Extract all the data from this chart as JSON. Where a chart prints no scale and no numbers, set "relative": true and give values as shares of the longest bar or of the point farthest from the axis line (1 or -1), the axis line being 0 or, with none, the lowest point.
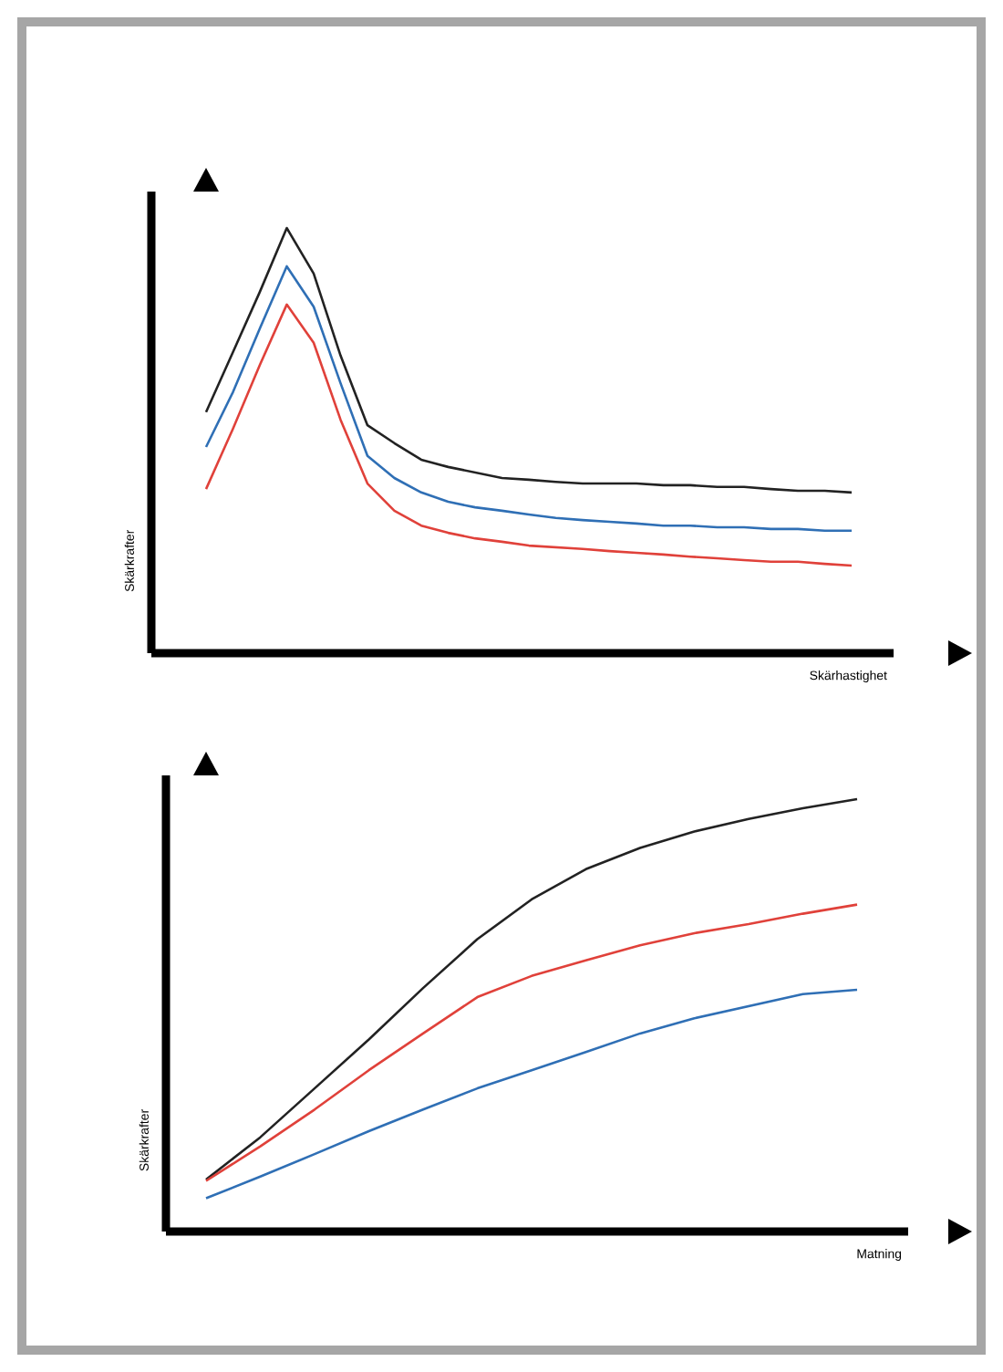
{
  "chart_data": [
    {
      "type": "line",
      "relative": true,
      "xlabel": "Skärhastighet",
      "ylabel": "Skärkrafter",
      "categories": [
        null,
        null,
        null,
        null,
        null,
        null,
        null,
        null,
        null,
        null,
        null,
        null,
        null,
        null,
        null,
        null,
        null,
        null,
        null,
        null,
        null,
        null,
        null,
        null,
        null
      ],
      "series": [
        {
          "color": "#222222",
          "values": [
            0.567,
            0.708,
            0.85,
            1.0,
            0.893,
            0.7,
            0.536,
            0.494,
            0.455,
            0.438,
            0.425,
            0.412,
            0.408,
            0.403,
            0.399,
            0.399,
            0.399,
            0.395,
            0.395,
            0.391,
            0.391,
            0.386,
            0.382,
            0.382,
            0.378
          ]
        },
        {
          "color": "#2f6fb5",
          "values": [
            0.485,
            0.614,
            0.764,
            0.91,
            0.815,
            0.635,
            0.464,
            0.412,
            0.378,
            0.356,
            0.343,
            0.335,
            0.326,
            0.318,
            0.313,
            0.309,
            0.305,
            0.3,
            0.3,
            0.296,
            0.296,
            0.292,
            0.292,
            0.288,
            0.288
          ]
        },
        {
          "color": "#e0413a",
          "values": [
            0.386,
            0.528,
            0.678,
            0.82,
            0.73,
            0.549,
            0.399,
            0.335,
            0.3,
            0.283,
            0.27,
            0.262,
            0.253,
            0.249,
            0.245,
            0.24,
            0.236,
            0.232,
            0.227,
            0.223,
            0.219,
            0.215,
            0.215,
            0.21,
            0.206
          ]
        }
      ]
    },
    {
      "type": "line",
      "relative": true,
      "xlabel": "Matning",
      "ylabel": "Skärkrafter",
      "categories": [
        null,
        null,
        null,
        null,
        null,
        null,
        null,
        null,
        null,
        null,
        null,
        null,
        null
      ],
      "series": [
        {
          "color": "#222222",
          "values": [
            0.12,
            0.218,
            0.331,
            0.444,
            0.563,
            0.676,
            0.768,
            0.838,
            0.887,
            0.925,
            0.954,
            0.979,
            1.0
          ]
        },
        {
          "color": "#e0413a",
          "values": [
            0.117,
            0.197,
            0.282,
            0.373,
            0.458,
            0.542,
            0.591,
            0.627,
            0.662,
            0.69,
            0.711,
            0.735,
            0.756
          ]
        },
        {
          "color": "#2f6fb5",
          "values": [
            0.077,
            0.127,
            0.179,
            0.232,
            0.282,
            0.331,
            0.373,
            0.415,
            0.458,
            0.493,
            0.521,
            0.549,
            0.559
          ]
        }
      ]
    }
  ]
}
